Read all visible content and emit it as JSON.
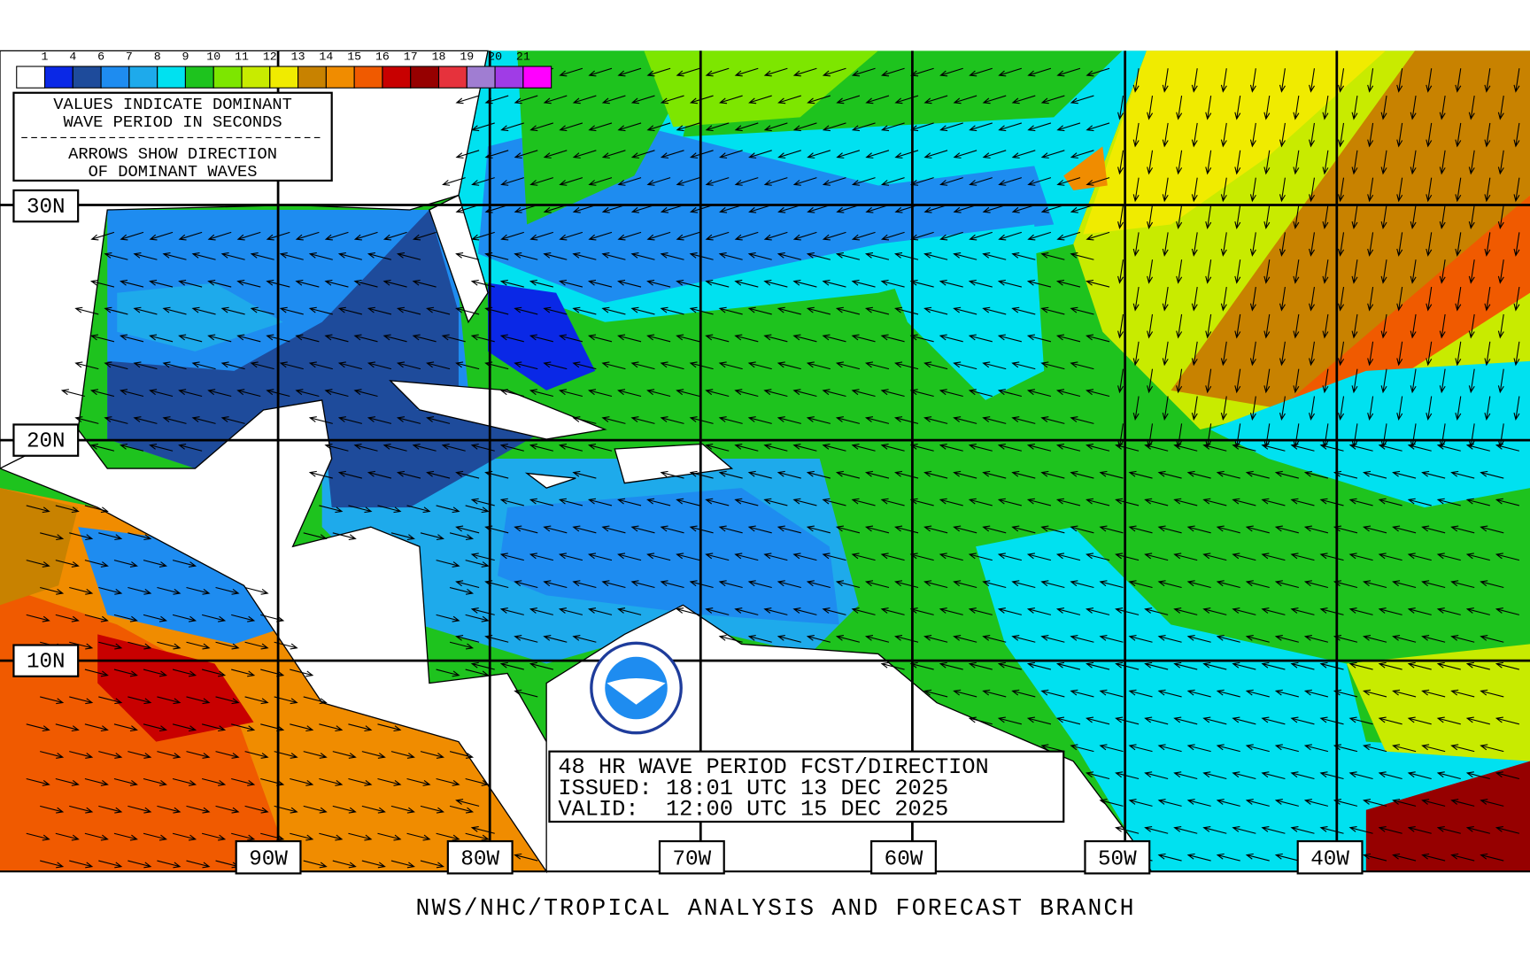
{
  "legend": {
    "labels": [
      "1",
      "4",
      "6",
      "7",
      "8",
      "9",
      "10",
      "11",
      "12",
      "13",
      "14",
      "15",
      "16",
      "17",
      "18",
      "19",
      "20",
      "21"
    ],
    "colors": [
      "#ffffff",
      "#0a28e6",
      "#1e4b9b",
      "#1e8cf0",
      "#1eaaeb",
      "#00e1f0",
      "#1ec31e",
      "#7de600",
      "#c8eb00",
      "#f0eb00",
      "#c88200",
      "#f08c00",
      "#f05a00",
      "#c80000",
      "#960000",
      "#e6323c",
      "#a07dd2",
      "#a03ce6",
      "#ff00ff"
    ]
  },
  "notes": {
    "line1": "VALUES INDICATE DOMINANT",
    "line2": "WAVE PERIOD IN SECONDS",
    "line3": "ARROWS SHOW DIRECTION",
    "line4": "OF DOMINANT WAVES"
  },
  "latitudes": [
    "30N",
    "20N",
    "10N"
  ],
  "longitudes": [
    "90W",
    "80W",
    "70W",
    "60W",
    "50W",
    "40W"
  ],
  "forecast": {
    "title": "48 HR WAVE PERIOD FCST/DIRECTION",
    "issued": "ISSUED: 18:01 UTC 13 DEC 2025",
    "valid": "VALID:  12:00 UTC 15 DEC 2025"
  },
  "footer": "NWS/NHC/TROPICAL ANALYSIS AND FORECAST BRANCH"
}
